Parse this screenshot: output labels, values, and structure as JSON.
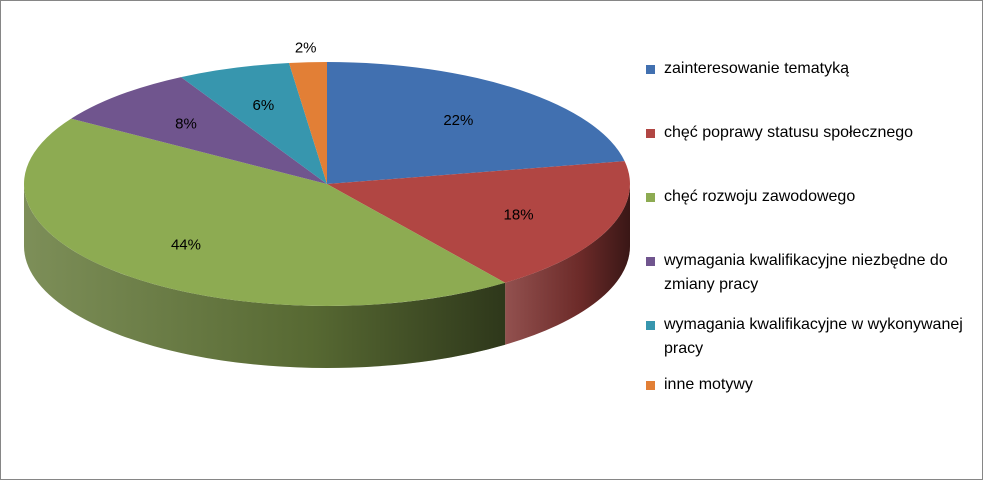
{
  "chart_data": {
    "type": "pie",
    "title": "",
    "slices": [
      {
        "label": "zainteresowanie tematyką",
        "value": 22,
        "value_label": "22%",
        "color": "#4170B0"
      },
      {
        "label": "chęć poprawy statusu społecznego",
        "value": 18,
        "value_label": "18%",
        "color": "#B14643"
      },
      {
        "label": "chęć rozwoju zawodowego",
        "value": 44,
        "value_label": "44%",
        "color": "#8DAB52"
      },
      {
        "label": "wymagania kwalifikacyjne niezbędne do zmiany pracy",
        "value": 8,
        "value_label": "8%",
        "color": "#70558E"
      },
      {
        "label": "wymagania kwalifikacyjne w wykonywanej pracy",
        "value": 6,
        "value_label": "6%",
        "color": "#3796AE"
      },
      {
        "label": "inne motywy",
        "value": 2,
        "value_label": "2%",
        "color": "#E27F36"
      }
    ],
    "legend_position": "right",
    "style": "3d-pie"
  }
}
